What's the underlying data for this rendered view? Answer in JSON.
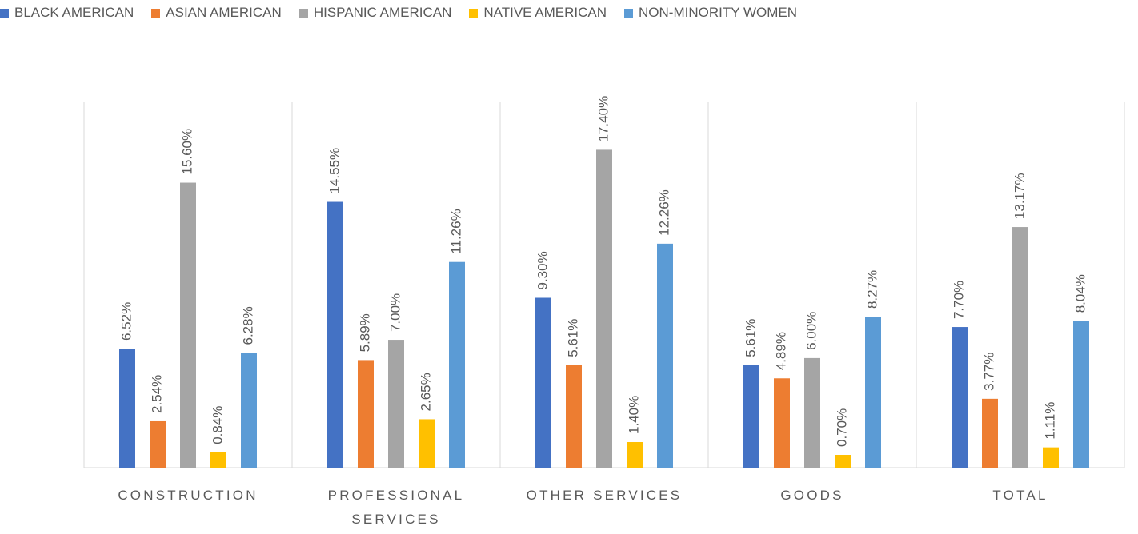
{
  "chart_data": {
    "type": "bar",
    "categories": [
      "CONSTRUCTION",
      "PROFESSIONAL SERVICES",
      "OTHER SERVICES",
      "GOODS",
      "TOTAL"
    ],
    "ylim": [
      0,
      20
    ],
    "legend": "top",
    "series": [
      {
        "name": "BLACK AMERICAN",
        "color": "#4472c4",
        "values": [
          6.52,
          14.55,
          9.3,
          5.61,
          7.7
        ],
        "value_labels": [
          "6.52%",
          "14.55%",
          "9.30%",
          "5.61%",
          "7.70%"
        ]
      },
      {
        "name": "ASIAN AMERICAN",
        "color": "#ed7d31",
        "values": [
          2.54,
          5.89,
          5.61,
          4.89,
          3.77
        ],
        "value_labels": [
          "2.54%",
          "5.89%",
          "5.61%",
          "4.89%",
          "3.77%"
        ]
      },
      {
        "name": "HISPANIC AMERICAN",
        "color": "#a5a5a5",
        "values": [
          15.6,
          7.0,
          17.4,
          6.0,
          13.17
        ],
        "value_labels": [
          "15.60%",
          "7.00%",
          "17.40%",
          "6.00%",
          "13.17%"
        ]
      },
      {
        "name": "NATIVE AMERICAN",
        "color": "#ffc000",
        "values": [
          0.84,
          2.65,
          1.4,
          0.7,
          1.11
        ],
        "value_labels": [
          "0.84%",
          "2.65%",
          "1.40%",
          "0.70%",
          "1.11%"
        ]
      },
      {
        "name": "NON-MINORITY WOMEN",
        "color": "#5b9bd5",
        "values": [
          6.28,
          11.26,
          12.26,
          8.27,
          8.04
        ],
        "value_labels": [
          "6.28%",
          "11.26%",
          "12.26%",
          "8.27%",
          "8.04%"
        ]
      }
    ]
  }
}
